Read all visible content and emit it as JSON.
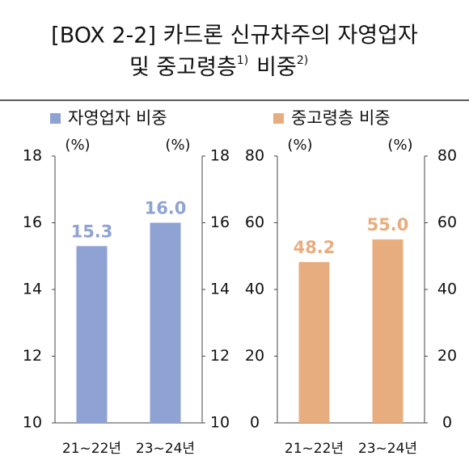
{
  "header": {
    "title_line1": "[BOX 2-2] 카드론 신규차주의 자영업자",
    "title_line2": "및 중고령층",
    "note1": "1)",
    "title_line2b": "비중",
    "note2": "2)"
  },
  "chart_data": [
    {
      "type": "bar",
      "categories": [
        "21~22년",
        "23~24년"
      ],
      "series": [
        {
          "name": "자영업자 비중",
          "color": "#8ea2d4",
          "values": [
            15.3,
            16.0
          ],
          "value_labels": [
            "15.3",
            "16.0"
          ]
        }
      ],
      "ylabel": "(%)",
      "y2label": "(%)",
      "ylim": [
        10,
        18
      ],
      "yticks": [
        10,
        12,
        14,
        16,
        18
      ],
      "y2lim": [
        10,
        18
      ],
      "y2ticks": [
        10,
        12,
        14,
        16,
        18
      ]
    },
    {
      "type": "bar",
      "categories": [
        "21~22년",
        "23~24년"
      ],
      "series": [
        {
          "name": "중고령층 비중",
          "color": "#e8ad7e",
          "values": [
            48.2,
            55.0
          ],
          "value_labels": [
            "48.2",
            "55.0"
          ]
        }
      ],
      "ylabel": "(%)",
      "y2label": "(%)",
      "ylim": [
        0,
        80
      ],
      "yticks": [
        0,
        20,
        40,
        60,
        80
      ],
      "y2lim": [
        0,
        80
      ],
      "y2ticks": [
        0,
        20,
        40,
        60,
        80
      ]
    }
  ]
}
